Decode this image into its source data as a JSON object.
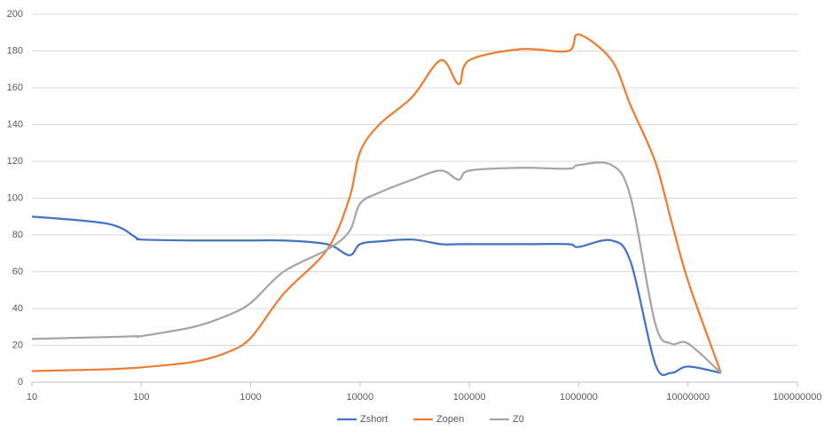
{
  "chart_data": {
    "type": "line",
    "log_x": true,
    "grid": true,
    "legend": "bottom",
    "x": [
      10,
      50,
      90,
      100,
      300,
      600,
      1000,
      2000,
      5000,
      8000,
      10000,
      15000,
      30000,
      55000,
      80000,
      100000,
      300000,
      800000,
      1000000,
      2000000,
      3000000,
      5000000,
      7000000,
      10000000,
      20000000
    ],
    "series": [
      {
        "name": "Zshort",
        "color": "#4472c4",
        "values": [
          90,
          86,
          78.5,
          77.5,
          77,
          77,
          77,
          77,
          75,
          69,
          75,
          76.5,
          77.5,
          75,
          75,
          75,
          75,
          75,
          73.5,
          77,
          65,
          10,
          5,
          8.5,
          5
        ]
      },
      {
        "name": "Zopen",
        "color": "#ed7d31",
        "values": [
          6,
          7,
          7.8,
          8,
          11,
          16,
          24,
          48,
          72,
          100,
          125,
          140,
          155,
          175,
          162,
          175,
          181,
          180,
          189,
          175,
          150,
          120,
          88,
          55,
          5
        ]
      },
      {
        "name": "Z0",
        "color": "#a5a5a5",
        "values": [
          23.5,
          24.5,
          25,
          25,
          30,
          36,
          43,
          60,
          72,
          82,
          97,
          103,
          110,
          115,
          110,
          115,
          116.5,
          116,
          118,
          118,
          100,
          32,
          21,
          21,
          5
        ]
      }
    ],
    "xlim": [
      10,
      100000000
    ],
    "xticks": [
      10,
      100,
      1000,
      10000,
      100000,
      1000000,
      10000000,
      100000000
    ],
    "ylim": [
      0,
      200
    ],
    "yticks": [
      0,
      20,
      40,
      60,
      80,
      100,
      120,
      140,
      160,
      180,
      200
    ]
  }
}
